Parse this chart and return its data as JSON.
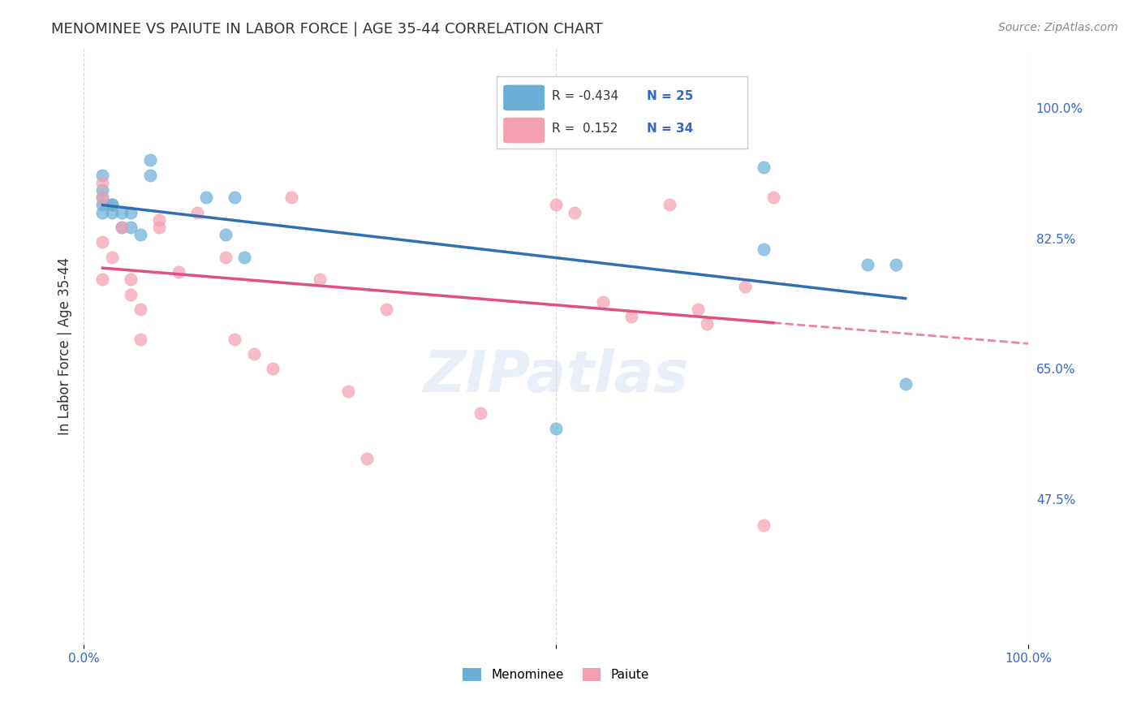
{
  "title": "MENOMINEE VS PAIUTE IN LABOR FORCE | AGE 35-44 CORRELATION CHART",
  "source": "Source: ZipAtlas.com",
  "xlabel": "",
  "ylabel": "In Labor Force | Age 35-44",
  "xlim": [
    0.0,
    1.0
  ],
  "ylim": [
    0.28,
    1.08
  ],
  "x_ticks": [
    0.0,
    0.1,
    0.2,
    0.3,
    0.4,
    0.5,
    0.6,
    0.7,
    0.8,
    0.9,
    1.0
  ],
  "x_tick_labels": [
    "0.0%",
    "",
    "",
    "",
    "",
    "",
    "",
    "",
    "",
    "",
    "100.0%"
  ],
  "y_tick_labels_right": [
    "100.0%",
    "82.5%",
    "65.0%",
    "47.5%"
  ],
  "y_ticks_right": [
    1.0,
    0.825,
    0.65,
    0.475
  ],
  "menominee_R": -0.434,
  "menominee_N": 25,
  "paiute_R": 0.152,
  "paiute_N": 34,
  "blue_color": "#6baed6",
  "pink_color": "#f4a0b0",
  "blue_line_color": "#3070b0",
  "pink_line_color": "#e05080",
  "menominee_x": [
    0.02,
    0.02,
    0.02,
    0.02,
    0.02,
    0.03,
    0.03,
    0.03,
    0.04,
    0.04,
    0.05,
    0.05,
    0.06,
    0.07,
    0.07,
    0.13,
    0.15,
    0.16,
    0.17,
    0.5,
    0.72,
    0.83,
    0.86,
    0.87,
    0.72
  ],
  "menominee_y": [
    0.91,
    0.89,
    0.88,
    0.87,
    0.86,
    0.87,
    0.87,
    0.86,
    0.86,
    0.84,
    0.86,
    0.84,
    0.83,
    0.91,
    0.93,
    0.88,
    0.83,
    0.88,
    0.8,
    0.57,
    0.81,
    0.79,
    0.79,
    0.63,
    0.92
  ],
  "paiute_x": [
    0.02,
    0.02,
    0.02,
    0.02,
    0.03,
    0.04,
    0.05,
    0.05,
    0.06,
    0.06,
    0.08,
    0.08,
    0.1,
    0.12,
    0.15,
    0.16,
    0.18,
    0.2,
    0.22,
    0.25,
    0.28,
    0.3,
    0.32,
    0.42,
    0.5,
    0.52,
    0.55,
    0.58,
    0.62,
    0.65,
    0.66,
    0.7,
    0.72,
    0.73
  ],
  "paiute_y": [
    0.9,
    0.88,
    0.82,
    0.77,
    0.8,
    0.84,
    0.77,
    0.75,
    0.73,
    0.69,
    0.84,
    0.85,
    0.78,
    0.86,
    0.8,
    0.69,
    0.67,
    0.65,
    0.88,
    0.77,
    0.62,
    0.53,
    0.73,
    0.59,
    0.87,
    0.86,
    0.74,
    0.72,
    0.87,
    0.73,
    0.71,
    0.76,
    0.44,
    0.88
  ],
  "watermark": "ZIPatlas",
  "background_color": "#ffffff",
  "grid_color": "#cccccc"
}
